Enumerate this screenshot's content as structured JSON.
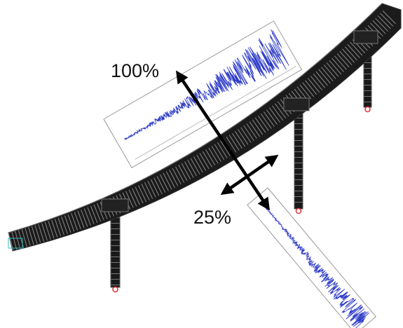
{
  "labels": {
    "major": "100%",
    "minor": "25%"
  }
}
